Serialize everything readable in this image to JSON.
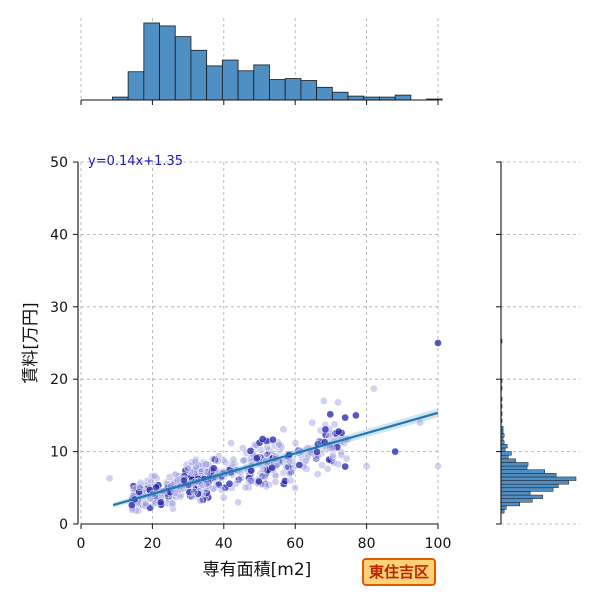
{
  "chart_data": {
    "type": "scatter",
    "xlabel": "専有面積[m2]",
    "ylabel": "賃料[万円]",
    "xlim": [
      0,
      100
    ],
    "ylim": [
      0,
      50
    ],
    "x_ticks": [
      0,
      20,
      40,
      60,
      80,
      100
    ],
    "y_ticks": [
      0,
      10,
      20,
      30,
      40,
      50
    ],
    "grid": true,
    "annotation": "y=0.14x+1.35",
    "area_label": "東住吉区",
    "regression": {
      "slope": 0.14,
      "intercept": 1.35,
      "x_range": [
        9,
        100
      ]
    },
    "outliers": [
      {
        "x": 100,
        "y": 25
      },
      {
        "x": 100,
        "y": 8
      },
      {
        "x": 95,
        "y": 14
      },
      {
        "x": 82,
        "y": 18.7
      },
      {
        "x": 88,
        "y": 10
      },
      {
        "x": 80,
        "y": 8
      },
      {
        "x": 72,
        "y": 16.8
      },
      {
        "x": 68,
        "y": 17
      },
      {
        "x": 77,
        "y": 15
      },
      {
        "x": 60,
        "y": 5
      },
      {
        "x": 44,
        "y": 3
      },
      {
        "x": 8,
        "y": 6.3
      }
    ],
    "x_histogram": {
      "bin_edges": [
        0,
        4.4,
        8.8,
        13.2,
        17.6,
        22,
        26.4,
        30.8,
        35.2,
        39.6,
        44,
        48.4,
        52.8,
        57.2,
        61.6,
        66,
        70.4,
        74.8,
        79.2,
        83.6,
        88,
        92.4,
        96.8,
        101.2
      ],
      "counts": [
        0,
        0,
        3,
        29,
        79,
        76,
        65,
        51,
        35,
        41,
        30,
        36,
        21,
        22,
        20,
        13,
        8,
        4,
        3,
        3,
        5,
        0,
        1
      ]
    },
    "y_histogram": {
      "bin_width": 0.5,
      "bins": [
        [
          1.5,
          3
        ],
        [
          2.0,
          5
        ],
        [
          2.5,
          18
        ],
        [
          3.0,
          30
        ],
        [
          3.5,
          40
        ],
        [
          4.0,
          28
        ],
        [
          4.5,
          50
        ],
        [
          5.0,
          55
        ],
        [
          5.5,
          65
        ],
        [
          6.0,
          72
        ],
        [
          6.5,
          53
        ],
        [
          7.0,
          42
        ],
        [
          7.5,
          25
        ],
        [
          8.0,
          26
        ],
        [
          8.5,
          14
        ],
        [
          9.0,
          7
        ],
        [
          9.5,
          10
        ],
        [
          10.0,
          4
        ],
        [
          10.5,
          6
        ],
        [
          11.0,
          3
        ],
        [
          11.5,
          2
        ],
        [
          12.0,
          3
        ],
        [
          12.5,
          2
        ],
        [
          13.0,
          2
        ],
        [
          14.0,
          1
        ],
        [
          15.0,
          1
        ],
        [
          16.0,
          1
        ],
        [
          17.0,
          1
        ],
        [
          18.5,
          1
        ],
        [
          19.5,
          1
        ],
        [
          25.0,
          1
        ]
      ]
    },
    "colors": {
      "bar_fill": "#4f8fc4",
      "bar_edge": "#1a1a1a",
      "point_light": "#9898e0",
      "point_dark": "#2020a8",
      "regression_line": "#1f77b4",
      "grid": "#aaaaaa"
    }
  }
}
